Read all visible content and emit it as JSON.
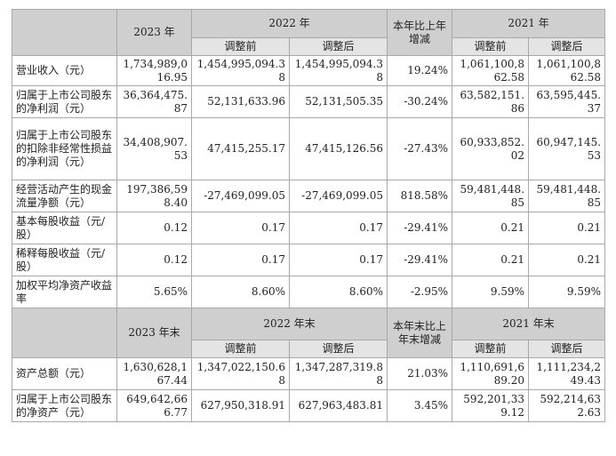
{
  "header1": {
    "c2023": "2023 年",
    "c2022": "2022 年",
    "change": "本年比上年增减",
    "c2021": "2021 年"
  },
  "sub": {
    "before": "调整前",
    "after": "调整后"
  },
  "rows1": [
    {
      "label": "营业收入（元）",
      "v2023": "1,734,989,016.95",
      "v2022b": "1,454,995,094.38",
      "v2022a": "1,454,995,094.38",
      "chg": "19.24%",
      "v2021b": "1,061,100,862.58",
      "v2021a": "1,061,100,862.58"
    },
    {
      "label": "归属于上市公司股东的净利润（元）",
      "v2023": "36,364,475.87",
      "v2022b": "52,131,633.96",
      "v2022a": "52,131,505.35",
      "chg": "-30.24%",
      "v2021b": "63,582,151.86",
      "v2021a": "63,595,445.37"
    },
    {
      "label": "归属于上市公司股东的扣除非经常性损益的净利润（元）",
      "v2023": "34,408,907.53",
      "v2022b": "47,415,255.17",
      "v2022a": "47,415,126.56",
      "chg": "-27.43%",
      "v2021b": "60,933,852.02",
      "v2021a": "60,947,145.53"
    },
    {
      "label": "经营活动产生的现金流量净额（元）",
      "v2023": "197,386,598.40",
      "v2022b": "-27,469,099.05",
      "v2022a": "-27,469,099.05",
      "chg": "818.58%",
      "v2021b": "59,481,448.85",
      "v2021a": "59,481,448.85"
    },
    {
      "label": "基本每股收益（元/股）",
      "v2023": "0.12",
      "v2022b": "0.17",
      "v2022a": "0.17",
      "chg": "-29.41%",
      "v2021b": "0.21",
      "v2021a": "0.21"
    },
    {
      "label": "稀释每股收益（元/股）",
      "v2023": "0.12",
      "v2022b": "0.17",
      "v2022a": "0.17",
      "chg": "-29.41%",
      "v2021b": "0.21",
      "v2021a": "0.21"
    },
    {
      "label": "加权平均净资产收益率",
      "v2023": "5.65%",
      "v2022b": "8.60%",
      "v2022a": "8.60%",
      "chg": "-2.95%",
      "v2021b": "9.59%",
      "v2021a": "9.59%"
    }
  ],
  "header2": {
    "c2023": "2023 年末",
    "c2022": "2022 年末",
    "change": "本年末比上年末增减",
    "c2021": "2021 年末"
  },
  "rows2": [
    {
      "label": "资产总额（元）",
      "v2023": "1,630,628,167.44",
      "v2022b": "1,347,022,150.68",
      "v2022a": "1,347,287,319.88",
      "chg": "21.03%",
      "v2021b": "1,110,691,689.20",
      "v2021a": "1,111,234,249.43"
    },
    {
      "label": "归属于上市公司股东的净资产（元）",
      "v2023": "649,642,666.77",
      "v2022b": "627,950,318.91",
      "v2022a": "627,963,483.81",
      "chg": "3.45%",
      "v2021b": "592,201,339.12",
      "v2021a": "592,214,632.63"
    }
  ]
}
